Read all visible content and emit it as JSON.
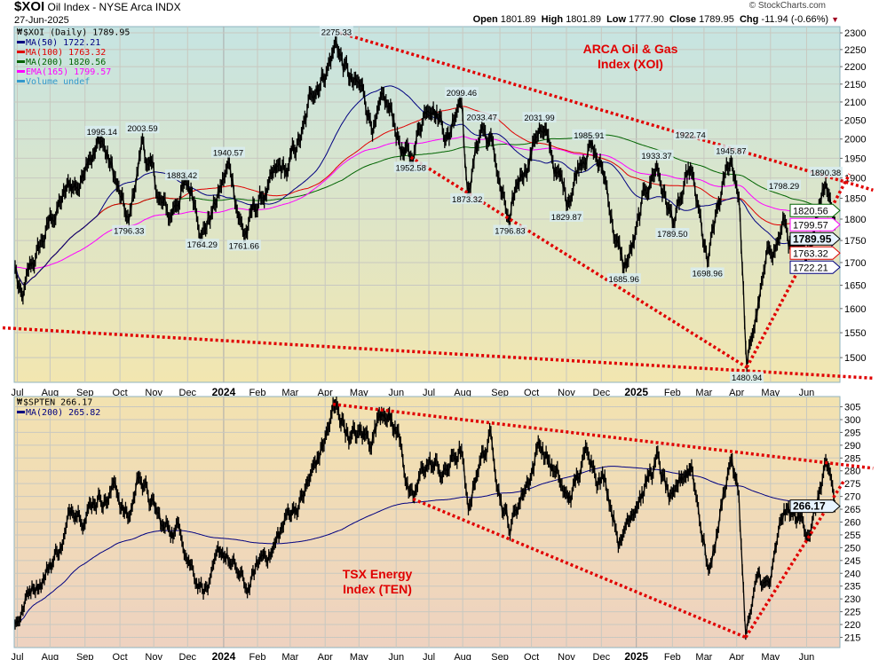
{
  "header": {
    "symbol": "$XOI",
    "name": "Oil Index - NYSE Arca  INDX",
    "date": "27-Jun-2025",
    "credit": "© StockCharts.com",
    "open_label": "Open",
    "open": "1801.89",
    "high_label": "High",
    "high": "1801.89",
    "low_label": "Low",
    "low": "1777.90",
    "close_label": "Close",
    "close": "1789.95",
    "chg_label": "Chg",
    "chg": "-11.94 (-0.66%)"
  },
  "colors": {
    "ma50": "#000080",
    "ma100": "#e00000",
    "ma200": "#006400",
    "ema165": "#ff00ff",
    "volume": "#3399cc",
    "price": "#000000",
    "trend": "#e00000"
  },
  "chart_data": [
    {
      "type": "line",
      "title": "$XOI (Daily) 1789.95",
      "scale": "log",
      "ylim": [
        1452,
        2319
      ],
      "yticks": [
        1500,
        1550,
        1600,
        1650,
        1700,
        1750,
        1800,
        1850,
        1900,
        1950,
        2000,
        2050,
        2100,
        2150,
        2200,
        2250,
        2300
      ],
      "legend": [
        {
          "key": "price",
          "text": "$XOI (Daily) 1789.95"
        },
        {
          "key": "ma50",
          "text": "MA(50) 1722.21"
        },
        {
          "key": "ma100",
          "text": "MA(100) 1763.32"
        },
        {
          "key": "ma200",
          "text": "MA(200) 1820.56"
        },
        {
          "key": "ema165",
          "text": "EMA(165) 1799.57"
        },
        {
          "key": "volume",
          "text": "Volume undef"
        }
      ],
      "legend_position": "top-left",
      "note": [
        "ARCA Oil & Gas",
        "Index (XOI)"
      ],
      "series_keypoints": [
        [
          "2023-07-01",
          1690
        ],
        [
          "2023-07-07",
          1630
        ],
        [
          "2023-07-25",
          1750
        ],
        [
          "2023-08-10",
          1840
        ],
        [
          "2023-08-28",
          1890
        ],
        [
          "2023-09-05",
          1950
        ],
        [
          "2023-09-16",
          1995.14
        ],
        [
          "2023-09-28",
          1900
        ],
        [
          "2023-10-10",
          1796.33
        ],
        [
          "2023-10-22",
          2003.59
        ],
        [
          "2023-11-05",
          1850
        ],
        [
          "2023-11-15",
          1800
        ],
        [
          "2023-11-26",
          1883.42
        ],
        [
          "2023-12-14",
          1764.29
        ],
        [
          "2024-01-06",
          1940.57
        ],
        [
          "2024-01-20",
          1761.66
        ],
        [
          "2024-02-10",
          1880
        ],
        [
          "2024-02-28",
          1920
        ],
        [
          "2024-03-15",
          2050
        ],
        [
          "2024-03-28",
          2150
        ],
        [
          "2024-04-11",
          2275.33
        ],
        [
          "2024-04-25",
          2160
        ],
        [
          "2024-05-10",
          2060
        ],
        [
          "2024-05-20",
          2110
        ],
        [
          "2024-06-16",
          1952.58
        ],
        [
          "2024-07-05",
          2070
        ],
        [
          "2024-07-20",
          2000
        ],
        [
          "2024-07-31",
          2099.46
        ],
        [
          "2024-08-05",
          1873.32
        ],
        [
          "2024-08-18",
          2033.47
        ],
        [
          "2024-08-28",
          1990
        ],
        [
          "2024-09-12",
          1796.83
        ],
        [
          "2024-09-25",
          1920
        ],
        [
          "2024-10-08",
          2031.99
        ],
        [
          "2024-10-22",
          1920
        ],
        [
          "2024-11-01",
          1829.87
        ],
        [
          "2024-11-21",
          1985.91
        ],
        [
          "2024-12-05",
          1900
        ],
        [
          "2024-12-22",
          1685.96
        ],
        [
          "2025-01-05",
          1800
        ],
        [
          "2025-01-20",
          1933.37
        ],
        [
          "2025-02-03",
          1789.5
        ],
        [
          "2025-02-19",
          1922.74
        ],
        [
          "2025-03-06",
          1698.96
        ],
        [
          "2025-03-20",
          1900
        ],
        [
          "2025-03-27",
          1945.87
        ],
        [
          "2025-04-03",
          1850
        ],
        [
          "2025-04-10",
          1480.94
        ],
        [
          "2025-04-22",
          1640
        ],
        [
          "2025-05-13",
          1798.29
        ],
        [
          "2025-06-01",
          1695
        ],
        [
          "2025-06-12",
          1820
        ],
        [
          "2025-06-19",
          1890.38
        ],
        [
          "2025-06-27",
          1789.95
        ]
      ],
      "peak_labels": [
        {
          "date": "2023-09-16",
          "value": 1995.14,
          "text": "1995.14",
          "pos": "above"
        },
        {
          "date": "2023-10-22",
          "value": 2003.59,
          "text": "2003.59",
          "pos": "above"
        },
        {
          "date": "2023-10-10",
          "value": 1796.33,
          "text": "1796.33",
          "pos": "below"
        },
        {
          "date": "2023-11-26",
          "value": 1883.42,
          "text": "1883.42",
          "pos": "above"
        },
        {
          "date": "2023-12-14",
          "value": 1764.29,
          "text": "1764.29",
          "pos": "below"
        },
        {
          "date": "2024-01-06",
          "value": 1940.57,
          "text": "1940.57",
          "pos": "above"
        },
        {
          "date": "2024-01-20",
          "value": 1761.66,
          "text": "1761.66",
          "pos": "below"
        },
        {
          "date": "2024-04-11",
          "value": 2275.33,
          "text": "2275.33",
          "pos": "above"
        },
        {
          "date": "2024-06-16",
          "value": 1952.58,
          "text": "1952.58",
          "pos": "below"
        },
        {
          "date": "2024-07-31",
          "value": 2099.46,
          "text": "2099.46",
          "pos": "above"
        },
        {
          "date": "2024-08-05",
          "value": 1873.32,
          "text": "1873.32",
          "pos": "below"
        },
        {
          "date": "2024-08-18",
          "value": 2033.47,
          "text": "2033.47",
          "pos": "above"
        },
        {
          "date": "2024-09-12",
          "value": 1796.83,
          "text": "1796.83",
          "pos": "below"
        },
        {
          "date": "2024-10-08",
          "value": 2031.99,
          "text": "2031.99",
          "pos": "above"
        },
        {
          "date": "2024-11-01",
          "value": 1829.87,
          "text": "1829.87",
          "pos": "below"
        },
        {
          "date": "2024-11-21",
          "value": 1985.91,
          "text": "1985.91",
          "pos": "above"
        },
        {
          "date": "2024-12-22",
          "value": 1685.96,
          "text": "1685.96",
          "pos": "below"
        },
        {
          "date": "2025-01-20",
          "value": 1933.37,
          "text": "1933.37",
          "pos": "above"
        },
        {
          "date": "2025-02-03",
          "value": 1789.5,
          "text": "1789.50",
          "pos": "below"
        },
        {
          "date": "2025-02-19",
          "value": 1922.74,
          "text": "1922.74",
          "pos": "above"
        },
        {
          "date": "2025-03-06",
          "value": 1698.96,
          "text": "1698.96",
          "pos": "below"
        },
        {
          "date": "2025-03-27",
          "value": 1945.87,
          "text": "1945.87",
          "pos": "above"
        },
        {
          "date": "2025-04-10",
          "value": 1480.94,
          "text": "1480.94",
          "pos": "below"
        },
        {
          "date": "2025-05-13",
          "value": 1798.29,
          "text": "1798.29",
          "pos": "above"
        },
        {
          "date": "2025-06-19",
          "value": 1890.38,
          "text": "1890.38",
          "pos": "above"
        }
      ],
      "value_tags": [
        {
          "key": "ma200",
          "value": 1820.56,
          "text": "1820.56"
        },
        {
          "key": "ema165",
          "value": 1799.57,
          "text": "1799.57"
        },
        {
          "key": "price",
          "value": 1789.95,
          "text": "1789.95"
        },
        {
          "key": "ma100",
          "value": 1763.32,
          "text": "1763.32"
        },
        {
          "key": "ma50",
          "value": 1722.21,
          "text": "1722.21"
        }
      ],
      "trendlines": [
        [
          [
            "2024-04-14",
            2300
          ],
          [
            "2025-07-31",
            1870
          ]
        ],
        [
          [
            "2024-06-16",
            1952.58
          ],
          [
            "2025-04-10",
            1480.94
          ]
        ],
        [
          [
            "2025-04-10",
            1480.94
          ],
          [
            "2025-07-10",
            1910
          ]
        ],
        [
          [
            "2023-06-20",
            1560
          ],
          [
            "2025-07-31",
            1460
          ]
        ]
      ]
    },
    {
      "type": "line",
      "title": "$SPTEN 266.17",
      "scale": "linear",
      "ylim": [
        211,
        309
      ],
      "yticks": [
        215,
        220,
        225,
        230,
        235,
        240,
        245,
        250,
        255,
        260,
        265,
        270,
        275,
        280,
        285,
        290,
        295,
        300,
        305
      ],
      "legend": [
        {
          "key": "price",
          "text": "$SPTEN 266.17"
        },
        {
          "key": "ma50",
          "text": "MA(200) 265.82"
        }
      ],
      "legend_position": "top-left",
      "note": [
        "TSX Energy",
        "Index (TEN)"
      ],
      "series_keypoints": [
        [
          "2023-07-01",
          220
        ],
        [
          "2023-07-15",
          232
        ],
        [
          "2023-08-10",
          250
        ],
        [
          "2023-08-25",
          262
        ],
        [
          "2023-09-12",
          268
        ],
        [
          "2023-09-28",
          275
        ],
        [
          "2023-10-10",
          262
        ],
        [
          "2023-10-20",
          277
        ],
        [
          "2023-11-10",
          258
        ],
        [
          "2023-11-25",
          255
        ],
        [
          "2023-12-08",
          236
        ],
        [
          "2023-12-14",
          234
        ],
        [
          "2024-01-05",
          248
        ],
        [
          "2024-01-22",
          234
        ],
        [
          "2024-02-15",
          250
        ],
        [
          "2024-03-10",
          270
        ],
        [
          "2024-03-25",
          285
        ],
        [
          "2024-04-08",
          306
        ],
        [
          "2024-04-20",
          296
        ],
        [
          "2024-05-10",
          290
        ],
        [
          "2024-05-25",
          300
        ],
        [
          "2024-06-08",
          288
        ],
        [
          "2024-06-18",
          270
        ],
        [
          "2024-07-01",
          282
        ],
        [
          "2024-07-15",
          280
        ],
        [
          "2024-07-31",
          288
        ],
        [
          "2024-08-06",
          265
        ],
        [
          "2024-08-15",
          280
        ],
        [
          "2024-08-25",
          296
        ],
        [
          "2024-09-12",
          255
        ],
        [
          "2024-09-28",
          275
        ],
        [
          "2024-10-08",
          290
        ],
        [
          "2024-10-20",
          280
        ],
        [
          "2024-11-02",
          270
        ],
        [
          "2024-11-21",
          285
        ],
        [
          "2024-12-05",
          278
        ],
        [
          "2024-12-20",
          253
        ],
        [
          "2025-01-05",
          270
        ],
        [
          "2025-01-20",
          287
        ],
        [
          "2025-02-05",
          272
        ],
        [
          "2025-02-20",
          282
        ],
        [
          "2025-03-08",
          242
        ],
        [
          "2025-03-27",
          284
        ],
        [
          "2025-04-03",
          270
        ],
        [
          "2025-04-09",
          216
        ],
        [
          "2025-04-20",
          240
        ],
        [
          "2025-04-30",
          236
        ],
        [
          "2025-05-13",
          265
        ],
        [
          "2025-06-01",
          255
        ],
        [
          "2025-06-12",
          270
        ],
        [
          "2025-06-19",
          284
        ],
        [
          "2025-06-27",
          266.17
        ]
      ],
      "value_tags": [
        {
          "key": "price",
          "value": 266.17,
          "text": "266.17"
        }
      ],
      "trendlines": [
        [
          [
            "2024-04-08",
            306
          ],
          [
            "2025-07-31",
            281
          ]
        ],
        [
          [
            "2024-06-18",
            269
          ],
          [
            "2025-04-09",
            215
          ]
        ],
        [
          [
            "2025-04-09",
            215
          ],
          [
            "2025-07-05",
            276
          ]
        ]
      ]
    }
  ],
  "xaxis": {
    "months": [
      {
        "label": "Jul",
        "date": "2023-07-03"
      },
      {
        "label": "Aug",
        "date": "2023-08-01"
      },
      {
        "label": "Sep",
        "date": "2023-09-01"
      },
      {
        "label": "Oct",
        "date": "2023-10-02"
      },
      {
        "label": "Nov",
        "date": "2023-11-01"
      },
      {
        "label": "Dec",
        "date": "2023-12-01"
      },
      {
        "label": "2024",
        "date": "2024-01-02",
        "year": true
      },
      {
        "label": "Feb",
        "date": "2024-02-01"
      },
      {
        "label": "Mar",
        "date": "2024-03-01"
      },
      {
        "label": "Apr",
        "date": "2024-04-01"
      },
      {
        "label": "May",
        "date": "2024-05-01"
      },
      {
        "label": "Jun",
        "date": "2024-06-03"
      },
      {
        "label": "Jul",
        "date": "2024-07-02"
      },
      {
        "label": "Aug",
        "date": "2024-08-01"
      },
      {
        "label": "Sep",
        "date": "2024-09-03"
      },
      {
        "label": "Oct",
        "date": "2024-10-01"
      },
      {
        "label": "Nov",
        "date": "2024-11-01"
      },
      {
        "label": "Dec",
        "date": "2024-12-02"
      },
      {
        "label": "2025",
        "date": "2025-01-02",
        "year": true
      },
      {
        "label": "Feb",
        "date": "2025-02-03"
      },
      {
        "label": "Mar",
        "date": "2025-03-03"
      },
      {
        "label": "Apr",
        "date": "2025-04-01"
      },
      {
        "label": "May",
        "date": "2025-05-01"
      },
      {
        "label": "Jun",
        "date": "2025-06-02"
      }
    ]
  }
}
